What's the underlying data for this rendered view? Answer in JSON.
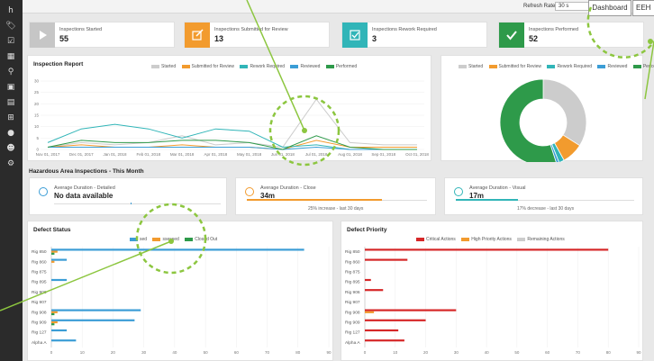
{
  "sidebar": {
    "icons": [
      "home-icon",
      "tag-icon",
      "checklist-icon",
      "calendar-icon",
      "hierarchy-icon",
      "image-icon",
      "grid-icon",
      "record-icon",
      "people-icon",
      "settings-icon"
    ]
  },
  "topbar": {
    "refresh_label": "Refresh Rate",
    "refresh_value": "30 s",
    "dashboard": "Dashboard",
    "account": "EEH"
  },
  "kpis": [
    {
      "label": "Inspections Started",
      "value": "55",
      "color": "#c6c6c6",
      "icon": "play-icon"
    },
    {
      "label": "Inspections Submitted for Review",
      "value": "13",
      "color": "#f29b2e",
      "icon": "edit-icon"
    },
    {
      "label": "Inspections Rework Required",
      "value": "3",
      "color": "#31b5b8",
      "icon": "checkbox-icon"
    },
    {
      "label": "Inspections Performed",
      "value": "52",
      "color": "#2e9a4a",
      "icon": "check-icon"
    }
  ],
  "inspection_report": {
    "title": "Inspection Report",
    "legend": [
      {
        "name": "Started",
        "color": "#cccccc"
      },
      {
        "name": "Submitted for Review",
        "color": "#f29b2e"
      },
      {
        "name": "Rework Required",
        "color": "#31b5b8"
      },
      {
        "name": "Reviewed",
        "color": "#3b9dd6"
      },
      {
        "name": "Performed",
        "color": "#2e9a4a"
      }
    ]
  },
  "hazard": {
    "title": "Hazardous Area Inspections - This Month",
    "items": [
      {
        "label": "Average Duration - Detailed",
        "value": "No data available",
        "note": "",
        "color": "#3b9dd6",
        "fraction": 0.0
      },
      {
        "label": "Average Duration - Close",
        "value": "34m",
        "note": "25% increase - last 30 days",
        "color": "#f29b2e",
        "fraction": 0.75
      },
      {
        "label": "Average Duration - Visual",
        "value": "17m",
        "note": "17% decrease - last 30 days",
        "color": "#31b5b8",
        "fraction": 0.35
      }
    ]
  },
  "defect_status": {
    "title": "Defect Status",
    "legend": [
      {
        "name": "sed",
        "color": "#3b9dd6"
      },
      {
        "name": "ssessed",
        "color": "#f29b2e"
      },
      {
        "name": "Closed Out",
        "color": "#2e9a4a"
      }
    ]
  },
  "defect_priority": {
    "title": "Defect Priority",
    "legend": [
      {
        "name": "Critical Actions",
        "color": "#d62728"
      },
      {
        "name": "High Priority Actions",
        "color": "#f29b2e"
      },
      {
        "name": "Remaining Actions",
        "color": "#cccccc"
      }
    ]
  },
  "chart_data": [
    {
      "type": "line",
      "title": "Inspection Report",
      "x": [
        "Nov 01, 2017",
        "Dec 01, 2017",
        "Jan 01, 2018",
        "Feb 01, 2018",
        "Mar 01, 2018",
        "Apr 01, 2018",
        "May 01, 2018",
        "Jun 01, 2018",
        "Jul 01, 2018",
        "Aug 01, 2018",
        "Sep 01, 2018",
        "Oct 01, 2018"
      ],
      "ylim": [
        0,
        30
      ],
      "yticks": [
        0,
        5,
        10,
        15,
        20,
        25,
        30
      ],
      "series": [
        {
          "name": "Started",
          "values": [
            1,
            3,
            2,
            3,
            6,
            2,
            3,
            1,
            22,
            3,
            2,
            2
          ]
        },
        {
          "name": "Submitted for Review",
          "values": [
            1,
            2,
            1,
            1,
            2,
            1,
            1,
            0,
            4,
            1,
            1,
            1
          ]
        },
        {
          "name": "Rework Required",
          "values": [
            3,
            9,
            11,
            9,
            5,
            9,
            8,
            1,
            2,
            0,
            0,
            0
          ]
        },
        {
          "name": "Reviewed",
          "values": [
            1,
            1,
            1,
            1,
            1,
            1,
            1,
            0,
            1,
            0,
            0,
            0
          ]
        },
        {
          "name": "Performed",
          "values": [
            1,
            4,
            3,
            3,
            4,
            4,
            3,
            0,
            6,
            1,
            0,
            0
          ]
        }
      ]
    },
    {
      "type": "pie",
      "categories": [
        "Started",
        "Submitted for Review",
        "Rework Required",
        "Reviewed",
        "Performed"
      ],
      "values": [
        34,
        8,
        2,
        1,
        55
      ]
    },
    {
      "type": "bar",
      "title": "Defect Status",
      "categories": [
        "Rig 850",
        "Rig 860",
        "Rig 875",
        "Rig 895",
        "Rig 906",
        "Rig 907",
        "Rig 908",
        "Rig 909",
        "Rig 127",
        "Alpha A"
      ],
      "xlim": [
        0,
        90
      ],
      "xticks": [
        0,
        10,
        20,
        30,
        40,
        50,
        60,
        70,
        80,
        90
      ],
      "series": [
        {
          "name": "sed",
          "values": [
            82,
            5,
            0,
            5,
            0,
            0,
            29,
            27,
            5,
            8
          ]
        },
        {
          "name": "ssessed",
          "values": [
            2,
            1,
            0,
            0,
            0,
            0,
            2,
            2,
            0,
            0
          ]
        },
        {
          "name": "Closed Out",
          "values": [
            1,
            0,
            0,
            0,
            0,
            0,
            1,
            1,
            0,
            0
          ]
        }
      ]
    },
    {
      "type": "bar",
      "title": "Defect Priority",
      "categories": [
        "Rig 850",
        "Rig 860",
        "Rig 875",
        "Rig 895",
        "Rig 906",
        "Rig 907",
        "Rig 908",
        "Rig 909",
        "Rig 127",
        "Alpha A"
      ],
      "xlim": [
        0,
        90
      ],
      "xticks": [
        0,
        10,
        20,
        30,
        40,
        50,
        60,
        70,
        80,
        90
      ],
      "series": [
        {
          "name": "Critical Actions",
          "values": [
            80,
            14,
            0,
            2,
            6,
            0,
            30,
            20,
            11,
            13
          ]
        },
        {
          "name": "High Priority Actions",
          "values": [
            0,
            0,
            0,
            0,
            0,
            0,
            3,
            0,
            0,
            0
          ]
        },
        {
          "name": "Remaining Actions",
          "values": [
            0,
            0,
            0,
            0,
            0,
            0,
            0,
            0,
            0,
            0
          ]
        }
      ]
    }
  ]
}
